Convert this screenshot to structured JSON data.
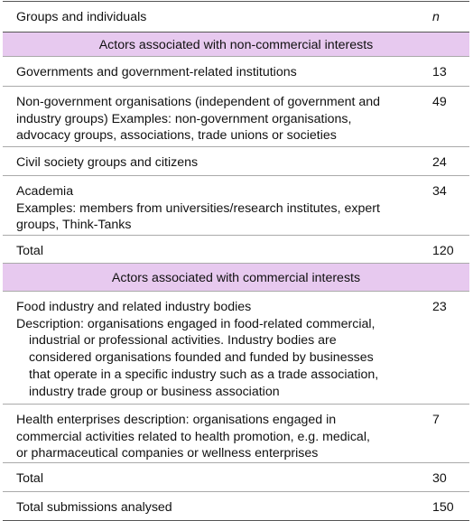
{
  "table": {
    "header": [
      "Groups and individuals",
      "n"
    ],
    "sections": [
      {
        "title": "Actors associated with non-commercial interests",
        "rows": [
          {
            "label": [
              "Governments and government-related institutions"
            ],
            "n": 13
          },
          {
            "label": [
              "Non-government organisations (independent of government and",
              "industry groups) Examples: non-government organisations,",
              "advocacy groups, associations, trade unions or societies"
            ],
            "n": 49
          },
          {
            "label": [
              "Civil society groups and citizens"
            ],
            "n": 24
          },
          {
            "label": [
              "Academia",
              "Examples: members from universities/research institutes, expert",
              "groups, Think-Tanks"
            ],
            "n": 34
          }
        ],
        "total": {
          "label": "Total",
          "n": 120
        }
      },
      {
        "title": "Actors associated with commercial interests",
        "rows": [
          {
            "label": [
              "Food industry and related industry bodies",
              "Description: organisations engaged in food-related commercial,",
              "industrial or professional activities. Industry bodies are",
              "considered organisations founded and funded by businesses",
              "that operate in a specific industry such as a trade association,",
              "industry trade group or business association"
            ],
            "n": 23
          },
          {
            "label": [
              "Health enterprises description: organisations engaged in",
              "commercial activities related to health promotion, e.g. medical,",
              "or pharmaceutical companies or wellness enterprises"
            ],
            "n": 7
          }
        ],
        "total": {
          "label": "Total",
          "n": 30
        }
      }
    ],
    "grand_total": {
      "label": "Total submissions analysed",
      "n": 150
    }
  }
}
